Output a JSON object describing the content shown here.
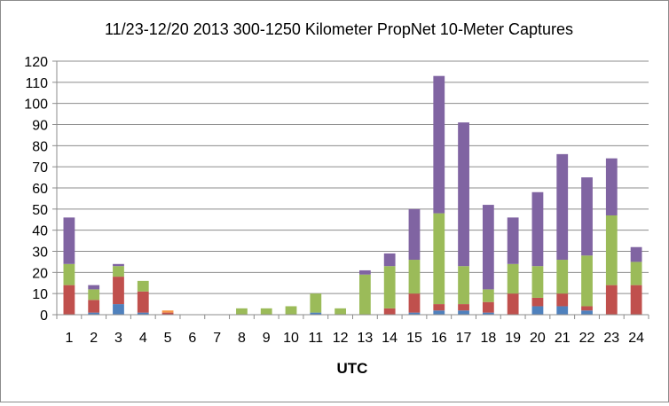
{
  "chart_data": {
    "type": "bar",
    "stacked": true,
    "title": "11/23-12/20 2013 300-1250 Kilometer PropNet 10-Meter Captures",
    "xlabel": "UTC",
    "ylabel": "",
    "ylim": [
      0,
      120
    ],
    "yticks": [
      "0",
      "10",
      "20",
      "30",
      "40",
      "50",
      "60",
      "70",
      "80",
      "90",
      "100",
      "110",
      "120"
    ],
    "grid": true,
    "legend": "none",
    "categories": [
      "1",
      "2",
      "3",
      "4",
      "5",
      "6",
      "7",
      "8",
      "9",
      "10",
      "11",
      "12",
      "13",
      "14",
      "15",
      "16",
      "17",
      "18",
      "19",
      "20",
      "21",
      "22",
      "23",
      "24"
    ],
    "series": [
      {
        "color": "#4f81bd",
        "values": [
          0,
          1,
          5,
          1,
          0,
          0,
          0,
          0,
          0,
          0,
          1,
          0,
          0,
          0,
          1,
          2,
          2,
          1,
          0,
          4,
          4,
          2,
          0,
          0
        ]
      },
      {
        "color": "#c0504d",
        "values": [
          14,
          6,
          13,
          10,
          1,
          0,
          0,
          0,
          0,
          0,
          0,
          0,
          0,
          3,
          9,
          3,
          3,
          5,
          10,
          4,
          6,
          2,
          14,
          14
        ]
      },
      {
        "color": "#f79646",
        "values": [
          0,
          0,
          0,
          0,
          1,
          0,
          0,
          0,
          0,
          0,
          0,
          0,
          0,
          0,
          0,
          0,
          0,
          0,
          0,
          0,
          0,
          0,
          0,
          0
        ]
      },
      {
        "color": "#9bbb59",
        "values": [
          10,
          5,
          5,
          5,
          0,
          0,
          0,
          3,
          3,
          4,
          9,
          3,
          19,
          20,
          16,
          43,
          18,
          6,
          14,
          15,
          16,
          24,
          33,
          11
        ]
      },
      {
        "color": "#8064a2",
        "values": [
          22,
          2,
          1,
          0,
          0,
          0,
          0,
          0,
          0,
          0,
          0,
          0,
          2,
          6,
          24,
          65,
          68,
          40,
          22,
          35,
          50,
          37,
          27,
          7
        ]
      }
    ]
  },
  "colors": {
    "grid": "#8c8c8c",
    "axis": "#8c8c8c",
    "border": "#8c8c8c"
  }
}
